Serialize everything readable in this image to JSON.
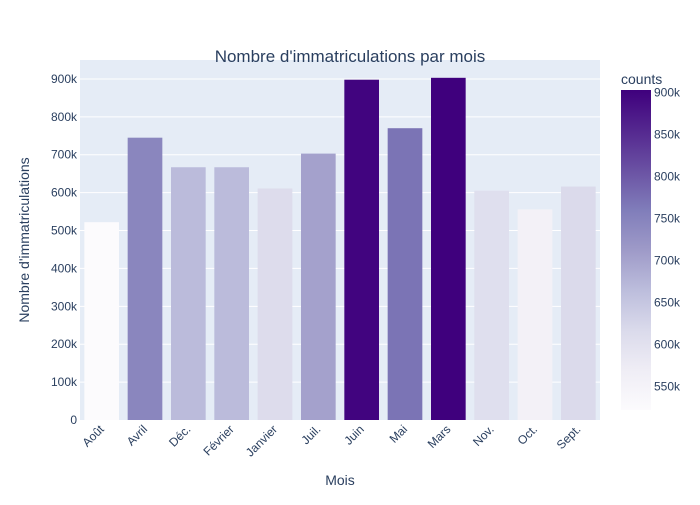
{
  "chart_data": {
    "type": "bar",
    "title": "Nombre d'immatriculations par mois",
    "xlabel": "Mois",
    "ylabel": "Nombre d'immatriculations",
    "categories": [
      "Août",
      "Avril",
      "Déc.",
      "Février",
      "Janvier",
      "Juil.",
      "Juin",
      "Mai",
      "Mars",
      "Nov.",
      "Oct.",
      "Sept."
    ],
    "values": [
      522000,
      745000,
      667000,
      667000,
      611000,
      703000,
      898000,
      770000,
      903000,
      605000,
      556000,
      616000
    ],
    "ylim": [
      0,
      950000
    ],
    "yticks": [
      {
        "value": 0,
        "label": "0"
      },
      {
        "value": 100000,
        "label": "100k"
      },
      {
        "value": 200000,
        "label": "200k"
      },
      {
        "value": 300000,
        "label": "300k"
      },
      {
        "value": 400000,
        "label": "400k"
      },
      {
        "value": 500000,
        "label": "500k"
      },
      {
        "value": 600000,
        "label": "600k"
      },
      {
        "value": 700000,
        "label": "700k"
      },
      {
        "value": 800000,
        "label": "800k"
      },
      {
        "value": 900000,
        "label": "900k"
      }
    ],
    "grid": true,
    "colorbar": {
      "title": "counts",
      "range": [
        522000,
        903000
      ],
      "ticks": [
        {
          "value": 550000,
          "label": "550k"
        },
        {
          "value": 600000,
          "label": "600k"
        },
        {
          "value": 650000,
          "label": "650k"
        },
        {
          "value": 700000,
          "label": "700k"
        },
        {
          "value": 750000,
          "label": "750k"
        },
        {
          "value": 800000,
          "label": "800k"
        },
        {
          "value": 850000,
          "label": "850k"
        },
        {
          "value": 900000,
          "label": "900k"
        }
      ],
      "colorscale": [
        "#fcfbfd",
        "#efedf5",
        "#dadaeb",
        "#bcbddc",
        "#9e9ac8",
        "#807dba",
        "#6a51a3",
        "#54278f",
        "#3f007d"
      ]
    },
    "colors": {
      "plot_background": "#e5ecf6",
      "grid": "#ffffff",
      "text": "#2a3f5f"
    }
  }
}
